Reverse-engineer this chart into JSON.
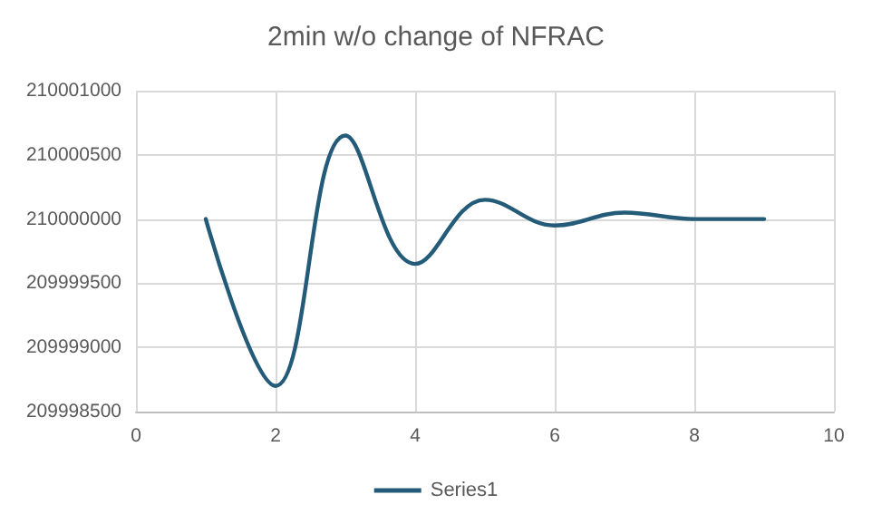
{
  "chart_data": {
    "type": "line",
    "title": "2min w/o change of NFRAC",
    "x": [
      1,
      2,
      3,
      4,
      5,
      6,
      7,
      8,
      9
    ],
    "series": [
      {
        "name": "Series1",
        "color": "#235b78",
        "values": [
          210000000,
          209998700,
          210000650,
          209999650,
          210000150,
          209999950,
          210000050,
          210000000,
          210000000
        ]
      }
    ],
    "xlim": [
      0,
      10
    ],
    "xticks": [
      0,
      2,
      4,
      6,
      8,
      10
    ],
    "ylim": [
      209998500,
      210001000
    ],
    "yticks": [
      209998500,
      209999000,
      209999500,
      210000000,
      210000500,
      210001000
    ],
    "grid": true,
    "legend": "bottom",
    "marker": "none",
    "line_style": "solid"
  }
}
